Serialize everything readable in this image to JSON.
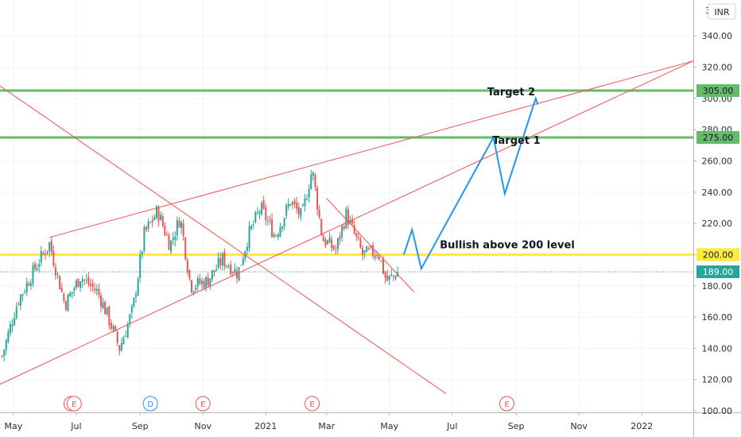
{
  "chart_data": {
    "type": "candlestick",
    "currency_label": "INR",
    "y_axis": {
      "ticks": [
        100,
        120,
        140,
        160,
        180,
        200,
        220,
        240,
        260,
        280,
        300,
        320,
        340
      ],
      "tick_labels": [
        "100.00",
        "120.00",
        "140.00",
        "160.00",
        "180.00",
        "200.00",
        "220.00",
        "240.00",
        "260.00",
        "280.00",
        "300.00",
        "320.00",
        "340.00"
      ],
      "ylim": [
        99,
        363
      ],
      "top_partial_label": "3"
    },
    "x_axis": {
      "range": [
        "2020-04-18",
        "2022-02-20"
      ],
      "ticks": [
        {
          "date": "2020-05-01",
          "label": "May"
        },
        {
          "date": "2020-07-01",
          "label": "Jul"
        },
        {
          "date": "2020-09-01",
          "label": "Sep"
        },
        {
          "date": "2020-11-01",
          "label": "Nov"
        },
        {
          "date": "2021-01-01",
          "label": "2021"
        },
        {
          "date": "2021-03-01",
          "label": "Mar"
        },
        {
          "date": "2021-05-01",
          "label": "May"
        },
        {
          "date": "2021-07-01",
          "label": "Jul"
        },
        {
          "date": "2021-09-01",
          "label": "Sep"
        },
        {
          "date": "2021-11-01",
          "label": "Nov"
        },
        {
          "date": "2022-01-01",
          "label": "2022"
        }
      ]
    },
    "grid": true,
    "candle_colors": {
      "up": "#26a69a",
      "down": "#ef5350"
    },
    "last_price": {
      "value": 189.0,
      "label": "189.00",
      "color": "#26a69a"
    },
    "price_path": [
      {
        "date": "2020-04-20",
        "price": 135
      },
      {
        "date": "2020-05-05",
        "price": 170
      },
      {
        "date": "2020-05-25",
        "price": 195
      },
      {
        "date": "2020-06-05",
        "price": 207
      },
      {
        "date": "2020-06-20",
        "price": 168
      },
      {
        "date": "2020-07-05",
        "price": 186
      },
      {
        "date": "2020-07-22",
        "price": 176
      },
      {
        "date": "2020-08-01",
        "price": 160
      },
      {
        "date": "2020-08-12",
        "price": 140
      },
      {
        "date": "2020-08-25",
        "price": 165
      },
      {
        "date": "2020-09-05",
        "price": 213
      },
      {
        "date": "2020-09-18",
        "price": 228
      },
      {
        "date": "2020-09-30",
        "price": 206
      },
      {
        "date": "2020-10-10",
        "price": 224
      },
      {
        "date": "2020-10-20",
        "price": 180
      },
      {
        "date": "2020-11-05",
        "price": 183
      },
      {
        "date": "2020-11-20",
        "price": 197
      },
      {
        "date": "2020-12-05",
        "price": 188
      },
      {
        "date": "2020-12-15",
        "price": 212
      },
      {
        "date": "2020-12-27",
        "price": 230
      },
      {
        "date": "2021-01-10",
        "price": 212
      },
      {
        "date": "2021-01-25",
        "price": 234
      },
      {
        "date": "2021-02-05",
        "price": 224
      },
      {
        "date": "2021-02-15",
        "price": 255
      },
      {
        "date": "2021-02-25",
        "price": 210
      },
      {
        "date": "2021-03-10",
        "price": 203
      },
      {
        "date": "2021-03-20",
        "price": 226
      },
      {
        "date": "2021-04-05",
        "price": 200
      },
      {
        "date": "2021-04-20",
        "price": 202
      },
      {
        "date": "2021-04-28",
        "price": 183
      },
      {
        "date": "2021-05-10",
        "price": 189
      }
    ],
    "horizontal_levels": [
      {
        "value": 305,
        "label": "305.00",
        "color": "#66bb6a"
      },
      {
        "value": 275,
        "label": "275.00",
        "color": "#66bb6a"
      },
      {
        "value": 200,
        "label": "200.00",
        "color": "#ffeb3b"
      }
    ],
    "trend_lines": [
      {
        "from": {
          "date": "2020-04-18",
          "price": 117
        },
        "to": {
          "date": "2022-02-20",
          "price": 324
        },
        "color": "#ef5350"
      },
      {
        "from": {
          "date": "2020-06-05",
          "price": 211
        },
        "to": {
          "date": "2022-02-20",
          "price": 324
        },
        "color": "#ef5350"
      },
      {
        "from": {
          "date": "2020-04-18",
          "price": 308
        },
        "to": {
          "date": "2021-06-25",
          "price": 111
        },
        "color": "#ef5350"
      },
      {
        "from": {
          "date": "2021-03-01",
          "price": 236
        },
        "to": {
          "date": "2021-05-25",
          "price": 176
        },
        "color": "#ef5350"
      }
    ],
    "projection": {
      "color": "#2196f3",
      "points": [
        {
          "date": "2021-05-15",
          "price": 200
        },
        {
          "date": "2021-05-23",
          "price": 216
        },
        {
          "date": "2021-06-01",
          "price": 191
        },
        {
          "date": "2021-08-10",
          "price": 275
        },
        {
          "date": "2021-08-21",
          "price": 239
        },
        {
          "date": "2021-09-20",
          "price": 300
        },
        {
          "date": "2021-09-22",
          "price": 296
        }
      ]
    },
    "annotations": [
      {
        "text": "Target 2",
        "date": "2021-08-04",
        "price": 302
      },
      {
        "text": "Target 1",
        "date": "2021-08-09",
        "price": 271
      },
      {
        "text": "Bullish above 200 level",
        "date": "2021-06-19",
        "price": 204
      }
    ],
    "event_markers": [
      {
        "date": "2020-06-26",
        "label": "E",
        "color": "#ef5350"
      },
      {
        "date": "2020-06-29",
        "label": "E",
        "color": "#ef5350"
      },
      {
        "date": "2020-09-11",
        "label": "D",
        "color": "#2196f3"
      },
      {
        "date": "2020-11-01",
        "label": "E",
        "color": "#ef5350"
      },
      {
        "date": "2021-02-15",
        "label": "E",
        "color": "#ef5350"
      },
      {
        "date": "2021-08-23",
        "label": "E",
        "color": "#ef5350"
      }
    ]
  }
}
